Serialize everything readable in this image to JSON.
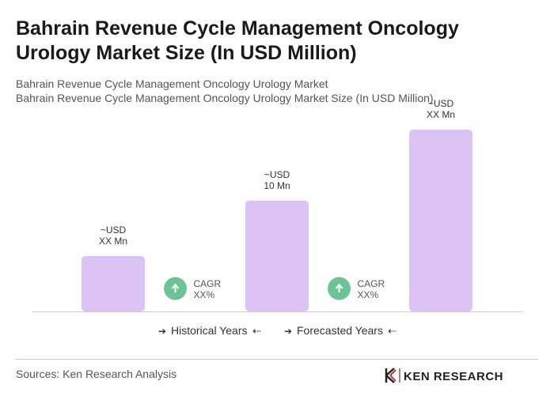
{
  "chart_data": {
    "type": "bar",
    "title": [
      "Bahrain Revenue Cycle Management Oncology",
      "Urology Market Size (In USD Million)"
    ],
    "subtitle": [
      "Bahrain Revenue Cycle Management Oncology Urology Market",
      "Bahrain Revenue Cycle Management Oncology Urology Market Size (In USD Million)"
    ],
    "categories": [
      null,
      null,
      null
    ],
    "values": [
      5,
      10,
      16.4
    ],
    "value_labels": [
      [
        "~USD",
        "XX Mn"
      ],
      [
        "~USD",
        "10 Mn"
      ],
      [
        "~USD",
        "XX Mn"
      ]
    ],
    "color": "#dcc3f6",
    "annotations": [
      {
        "label": "CAGR",
        "value": "XX%"
      },
      {
        "label": "CAGR",
        "value": "XX%"
      }
    ],
    "annotation_color": "#6cc495",
    "legend": [
      "Historical Years",
      "Forecasted Years"
    ],
    "source": "Sources: Ken Research Analysis",
    "logo": "KEN RESEARCH"
  }
}
